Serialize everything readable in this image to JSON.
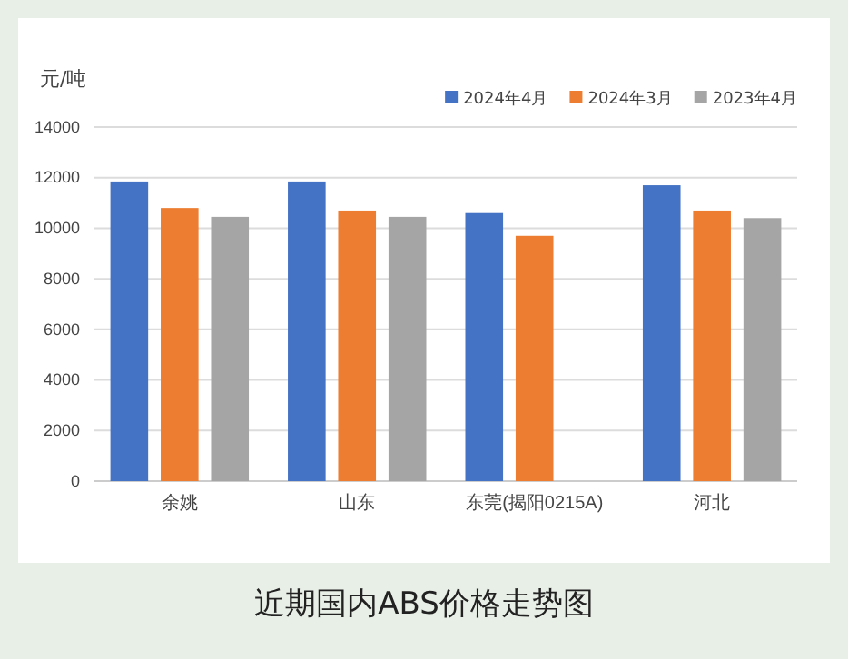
{
  "chart_data": {
    "type": "bar",
    "title": "近期国内ABS价格走势图",
    "ylabel": "元/吨",
    "categories": [
      "余姚",
      "山东",
      "东莞(揭阳0215A)",
      "河北"
    ],
    "series": [
      {
        "name": "2024年4月",
        "color": "#4472c4",
        "values": [
          11850,
          11850,
          10600,
          11700
        ]
      },
      {
        "name": "2024年3月",
        "color": "#ed7d31",
        "values": [
          10800,
          10700,
          9700,
          10700
        ]
      },
      {
        "name": "2023年4月",
        "color": "#a5a5a5",
        "values": [
          10450,
          10450,
          null,
          10400
        ]
      }
    ],
    "ylim": [
      0,
      14000
    ],
    "yticks": [
      0,
      2000,
      4000,
      6000,
      8000,
      10000,
      12000,
      14000
    ],
    "grid": "y",
    "legend": "top right"
  }
}
